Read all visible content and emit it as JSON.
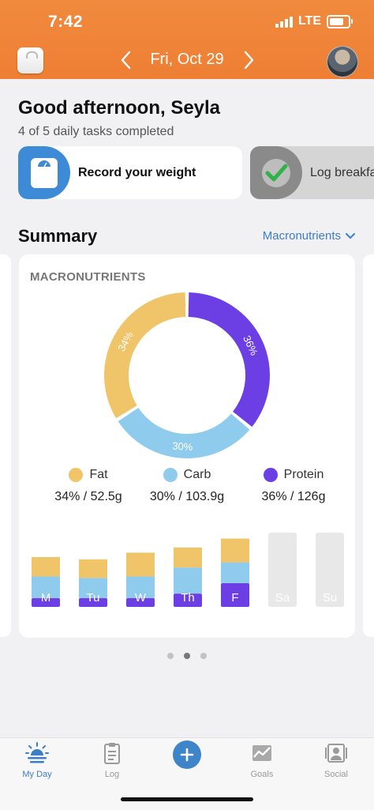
{
  "status": {
    "time": "7:42",
    "network": "LTE"
  },
  "header": {
    "date": "Fri, Oct 29"
  },
  "greeting": {
    "title": "Good afternoon, Seyla",
    "subtitle": "4 of 5 daily tasks completed"
  },
  "tasks": [
    {
      "label": "Record your weight",
      "done": false
    },
    {
      "label": "Log breakfast",
      "done": true
    }
  ],
  "summary": {
    "title": "Summary",
    "dropdown": "Macronutrients",
    "card_title": "MACRONUTRIENTS"
  },
  "colors": {
    "fat": "#f0c468",
    "carb": "#8ecbed",
    "protein": "#6b3fe4",
    "empty": "#e8e8e8",
    "accent": "#3d7ec7",
    "header": "#ef8338"
  },
  "chart_data": [
    {
      "type": "pie",
      "title": "MACRONUTRIENTS",
      "series": [
        {
          "name": "Fat",
          "value": 34,
          "label": "34%",
          "detail": "34% / 52.5g",
          "color": "#f0c468"
        },
        {
          "name": "Carb",
          "value": 30,
          "label": "30%",
          "detail": "30% / 103.9g",
          "color": "#8ecbed"
        },
        {
          "name": "Protein",
          "value": 36,
          "label": "36%",
          "detail": "36% / 126g",
          "color": "#6b3fe4"
        }
      ]
    },
    {
      "type": "bar",
      "stacked": true,
      "categories": [
        "M",
        "Tu",
        "W",
        "Th",
        "F",
        "Sa",
        "Su"
      ],
      "series": [
        {
          "name": "Protein",
          "values": [
            12,
            12,
            12,
            18,
            32,
            0,
            0
          ]
        },
        {
          "name": "Carb",
          "values": [
            29,
            27,
            29,
            35,
            28,
            0,
            0
          ]
        },
        {
          "name": "Fat",
          "values": [
            26,
            25,
            32,
            27,
            32,
            0,
            0
          ]
        }
      ],
      "ylim": [
        0,
        100
      ]
    }
  ],
  "pager": {
    "count": 3,
    "active": 1
  },
  "tabs": [
    {
      "id": "myday",
      "label": "My Day",
      "active": true
    },
    {
      "id": "log",
      "label": "Log",
      "active": false
    },
    {
      "id": "goals",
      "label": "Goals",
      "active": false
    },
    {
      "id": "social",
      "label": "Social",
      "active": false
    }
  ]
}
